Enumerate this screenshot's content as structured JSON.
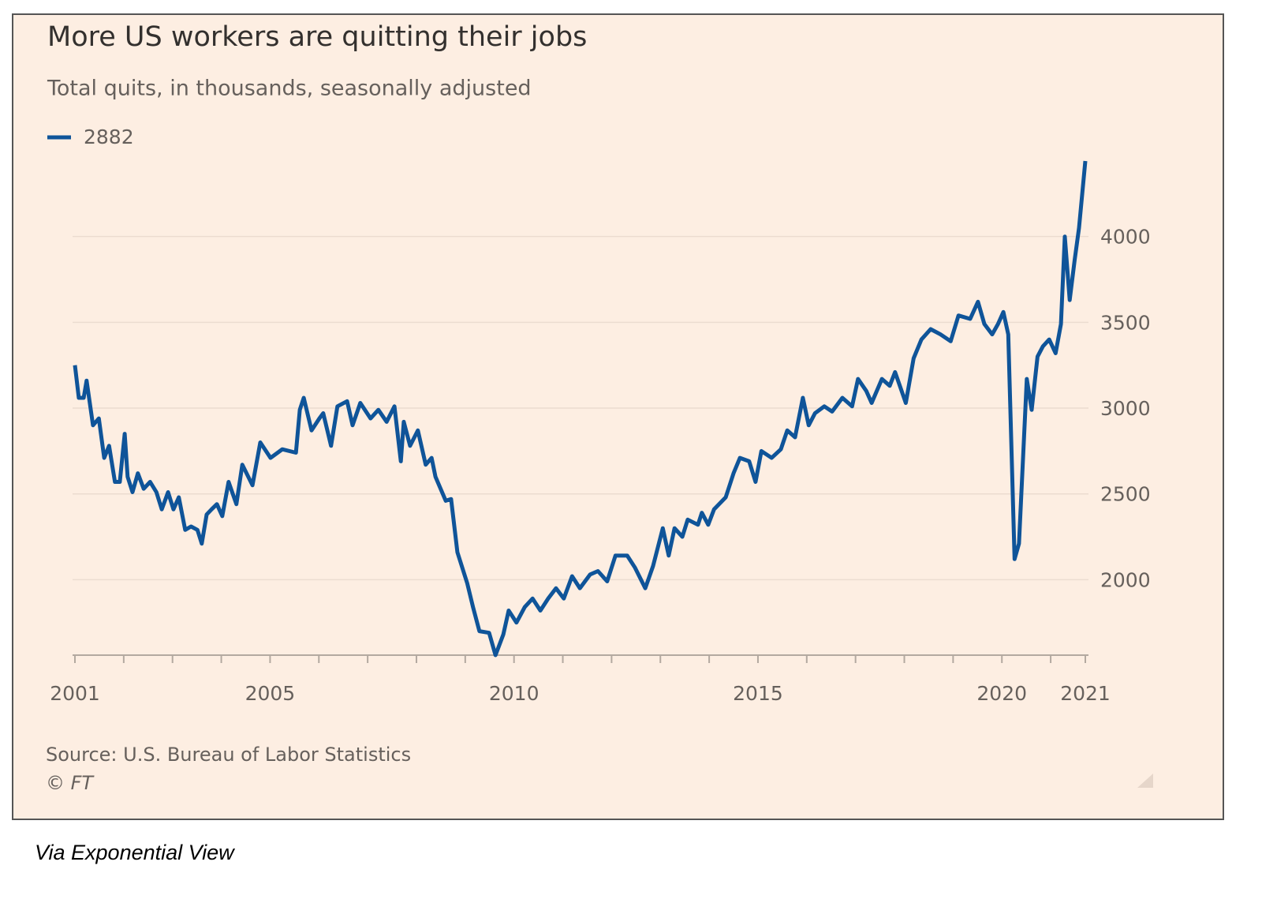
{
  "chart_data": {
    "type": "line",
    "title": "More US workers are quitting their jobs",
    "subtitle": "Total quits, in thousands, seasonally adjusted",
    "source": "Source: U.S. Bureau of Labor Statistics",
    "credit": "© FT",
    "legend": "top-left",
    "grid": true,
    "x": [
      2001.0,
      2001.08,
      2001.18,
      2001.24,
      2001.37,
      2001.49,
      2001.6,
      2001.7,
      2001.82,
      2001.92,
      2002.02,
      2002.08,
      2002.18,
      2002.29,
      2002.41,
      2002.54,
      2002.67,
      2002.78,
      2002.91,
      2003.02,
      2003.13,
      2003.26,
      2003.38,
      2003.51,
      2003.6,
      2003.7,
      2003.8,
      2003.91,
      2004.02,
      2004.15,
      2004.31,
      2004.43,
      2004.64,
      2004.8,
      2005.01,
      2005.25,
      2005.53,
      2005.61,
      2005.69,
      2005.85,
      2006.01,
      2006.09,
      2006.25,
      2006.38,
      2006.58,
      2006.69,
      2006.85,
      2007.06,
      2007.22,
      2007.39,
      2007.55,
      2007.68,
      2007.74,
      2007.87,
      2008.03,
      2008.19,
      2008.31,
      2008.39,
      2008.6,
      2008.71,
      2008.84,
      2009.04,
      2009.16,
      2009.29,
      2009.49,
      2009.62,
      2009.78,
      2009.89,
      2010.05,
      2010.22,
      2010.38,
      2010.54,
      2010.7,
      2010.86,
      2011.02,
      2011.19,
      2011.35,
      2011.56,
      2011.72,
      2011.91,
      2012.08,
      2012.32,
      2012.48,
      2012.69,
      2012.85,
      2013.05,
      2013.17,
      2013.29,
      2013.45,
      2013.56,
      2013.77,
      2013.85,
      2013.98,
      2014.1,
      2014.34,
      2014.5,
      2014.63,
      2014.82,
      2014.95,
      2015.07,
      2015.28,
      2015.47,
      2015.6,
      2015.76,
      2015.92,
      2016.04,
      2016.17,
      2016.36,
      2016.52,
      2016.73,
      2016.93,
      2017.05,
      2017.22,
      2017.33,
      2017.54,
      2017.7,
      2017.81,
      2018.03,
      2018.19,
      2018.35,
      2018.54,
      2018.74,
      2018.95,
      2019.11,
      2019.35,
      2019.51,
      2019.64,
      2019.8,
      2019.92,
      2020.03,
      2020.13,
      2020.26,
      2020.35,
      2020.51,
      2020.61,
      2020.73,
      2020.84,
      2020.97,
      2021.1,
      2021.21,
      2021.29,
      2021.39,
      2021.49,
      2021.58,
      2021.71
    ],
    "series": [
      {
        "name": "2882",
        "color": "#0f5499",
        "values": [
          3250,
          3060,
          3060,
          3160,
          2900,
          2940,
          2710,
          2780,
          2570,
          2570,
          2850,
          2600,
          2510,
          2620,
          2530,
          2570,
          2510,
          2410,
          2510,
          2410,
          2480,
          2290,
          2310,
          2290,
          2210,
          2380,
          2410,
          2440,
          2370,
          2570,
          2440,
          2670,
          2550,
          2800,
          2710,
          2760,
          2740,
          2990,
          3060,
          2870,
          2940,
          2970,
          2780,
          3010,
          3040,
          2900,
          3030,
          2940,
          2990,
          2920,
          3010,
          2690,
          2920,
          2780,
          2870,
          2670,
          2710,
          2600,
          2460,
          2470,
          2160,
          1980,
          1840,
          1700,
          1690,
          1560,
          1680,
          1820,
          1750,
          1840,
          1890,
          1820,
          1890,
          1950,
          1890,
          2020,
          1950,
          2030,
          2050,
          1990,
          2140,
          2140,
          2070,
          1950,
          2080,
          2300,
          2140,
          2300,
          2250,
          2350,
          2320,
          2390,
          2320,
          2410,
          2480,
          2620,
          2710,
          2690,
          2570,
          2750,
          2710,
          2760,
          2870,
          2830,
          3060,
          2900,
          2970,
          3010,
          2980,
          3060,
          3010,
          3170,
          3100,
          3030,
          3170,
          3130,
          3210,
          3030,
          3290,
          3400,
          3460,
          3430,
          3390,
          3540,
          3520,
          3620,
          3490,
          3430,
          3490,
          3560,
          3430,
          2120,
          2210,
          3170,
          2990,
          3300,
          3360,
          3400,
          3320,
          3490,
          4000,
          3630,
          3860,
          4050,
          4440
        ]
      }
    ],
    "xlim": [
      2001,
      2021.71
    ],
    "xticks": [
      2001,
      2005,
      2010,
      2015,
      2020,
      {
        "value": 2021.71,
        "label": "2021"
      }
    ],
    "xminorticks": [
      2002,
      2003,
      2004,
      2006,
      2007,
      2008,
      2009,
      2011,
      2012,
      2013,
      2014,
      2016,
      2017,
      2018,
      2019,
      2021
    ],
    "ylim": [
      1560,
      4500
    ],
    "yticks": [
      2000,
      2500,
      3000,
      3500,
      4000
    ]
  },
  "caption": "Via Exponential View"
}
